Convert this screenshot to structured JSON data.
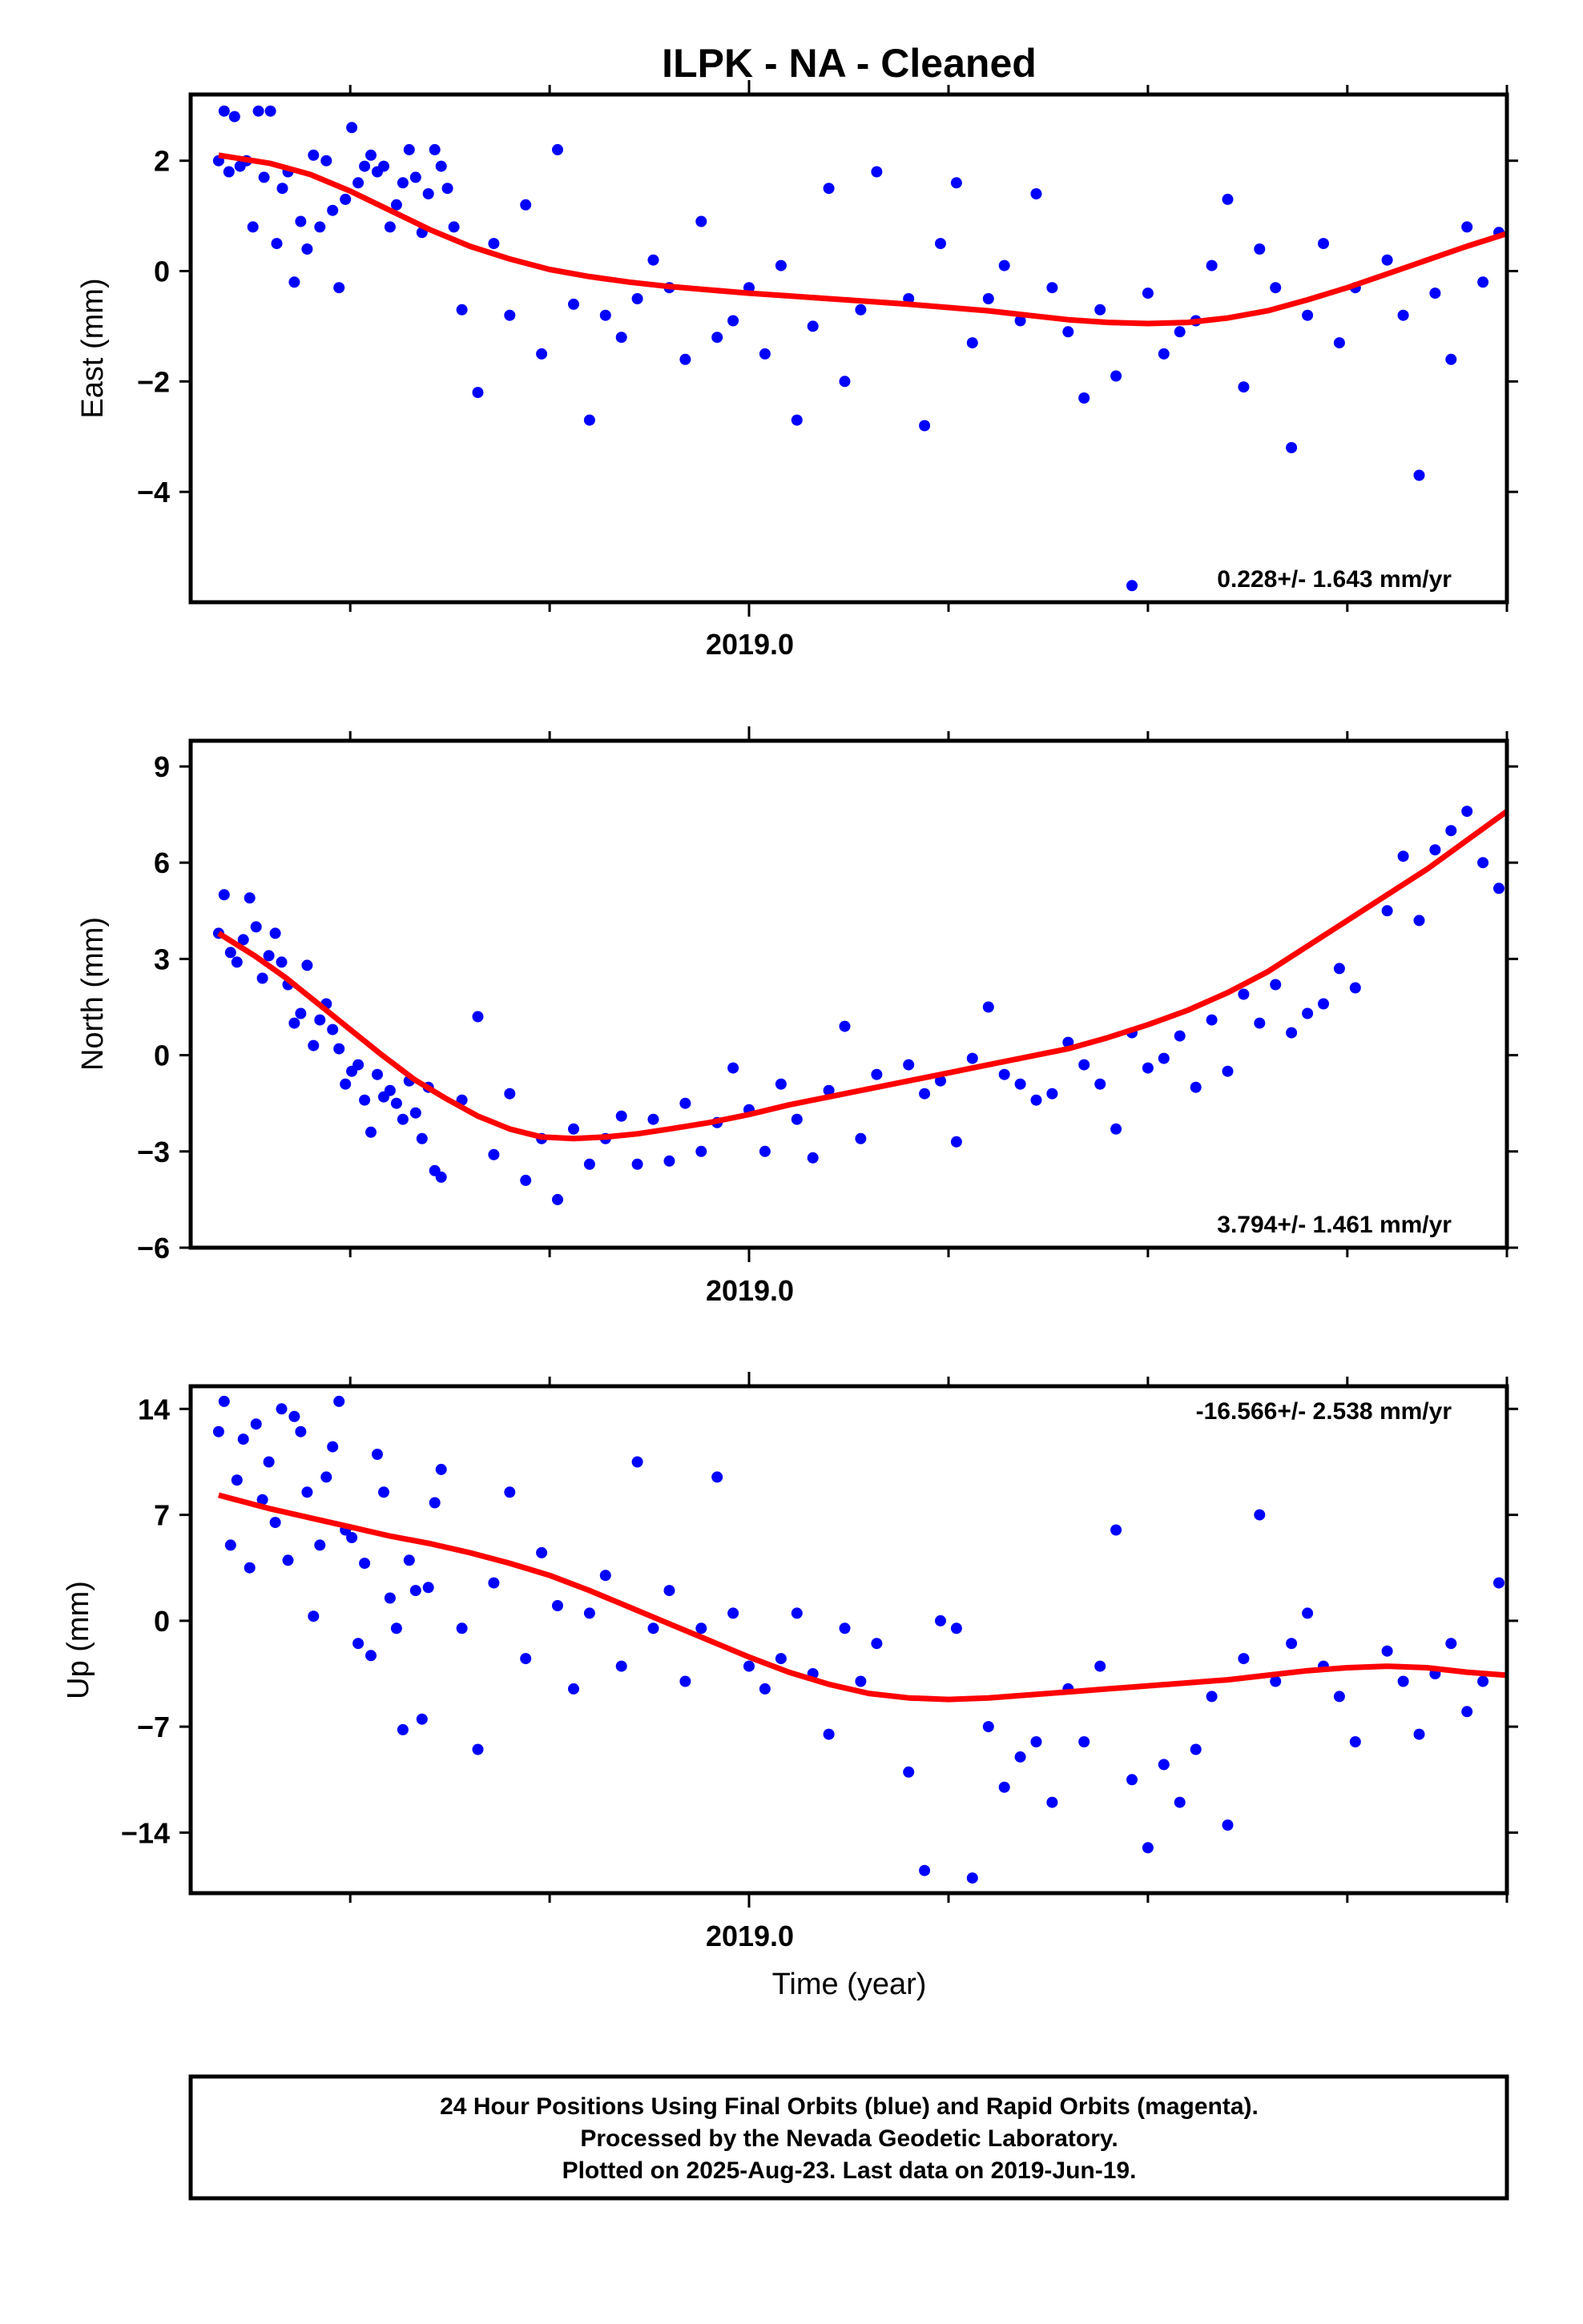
{
  "title": "ILPK  - NA - Cleaned",
  "xlabel": "Time (year)",
  "footer": {
    "line1": "24 Hour Positions Using Final Orbits (blue) and Rapid Orbits (magenta).",
    "line2": "Processed by the Nevada Geodetic Laboratory.",
    "line3": "Plotted on 2025-Aug-23. Last data on 2019-Jun-19."
  },
  "colors": {
    "points": "#0000ff",
    "fit": "#ff0000",
    "frame": "#000000"
  },
  "chart_data": [
    {
      "type": "scatter",
      "ylabel": "East (mm)",
      "rate_label": "0.228+/- 1.643 mm/yr",
      "x_tick_labels": [
        "2019.0"
      ],
      "y_ticks": [
        2,
        0,
        -2,
        -4
      ],
      "y_tick_labels": [
        "2",
        "0",
        "−2",
        "−4"
      ],
      "xlim": [
        2018.3,
        2019.95
      ],
      "ylim": [
        -6.0,
        3.2
      ],
      "x": [
        2018.335,
        2018.342,
        2018.348,
        2018.355,
        2018.362,
        2018.37,
        2018.378,
        2018.385,
        2018.392,
        2018.4,
        2018.408,
        2018.415,
        2018.422,
        2018.43,
        2018.438,
        2018.446,
        2018.454,
        2018.462,
        2018.47,
        2018.478,
        2018.486,
        2018.494,
        2018.502,
        2018.51,
        2018.518,
        2018.526,
        2018.534,
        2018.542,
        2018.55,
        2018.558,
        2018.566,
        2018.574,
        2018.582,
        2018.59,
        2018.598,
        2018.606,
        2018.614,
        2018.622,
        2018.63,
        2018.64,
        2018.66,
        2018.68,
        2018.7,
        2018.72,
        2018.74,
        2018.76,
        2018.78,
        2018.8,
        2018.82,
        2018.84,
        2018.86,
        2018.88,
        2018.9,
        2018.92,
        2018.94,
        2018.96,
        2018.98,
        2019.0,
        2019.02,
        2019.04,
        2019.06,
        2019.08,
        2019.1,
        2019.12,
        2019.14,
        2019.16,
        2019.2,
        2019.22,
        2019.24,
        2019.26,
        2019.28,
        2019.3,
        2019.32,
        2019.34,
        2019.36,
        2019.38,
        2019.4,
        2019.42,
        2019.44,
        2019.46,
        2019.48,
        2019.5,
        2019.52,
        2019.54,
        2019.56,
        2019.58,
        2019.6,
        2019.62,
        2019.64,
        2019.66,
        2019.68,
        2019.7,
        2019.72,
        2019.74,
        2019.76,
        2019.8,
        2019.82,
        2019.84,
        2019.86,
        2019.88,
        2019.9,
        2019.92,
        2019.94
      ],
      "values": [
        2.0,
        2.9,
        1.8,
        2.8,
        1.9,
        2.0,
        0.8,
        2.9,
        1.7,
        2.9,
        0.5,
        1.5,
        1.8,
        -0.2,
        0.9,
        0.4,
        2.1,
        0.8,
        2.0,
        1.1,
        -0.3,
        1.3,
        2.6,
        1.6,
        1.9,
        2.1,
        1.8,
        1.9,
        0.8,
        1.2,
        1.6,
        2.2,
        1.7,
        0.7,
        1.4,
        2.2,
        1.9,
        1.5,
        0.8,
        -0.7,
        -2.2,
        0.5,
        -0.8,
        1.2,
        -1.5,
        2.2,
        -0.6,
        -2.7,
        -0.8,
        -1.2,
        -0.5,
        0.2,
        -0.3,
        -1.6,
        0.9,
        -1.2,
        -0.9,
        -0.3,
        -1.5,
        0.1,
        -2.7,
        -1.0,
        1.5,
        -2.0,
        -0.7,
        1.8,
        -0.5,
        -2.8,
        0.5,
        1.6,
        -1.3,
        -0.5,
        0.1,
        -0.9,
        1.4,
        -0.3,
        -1.1,
        -2.3,
        -0.7,
        -1.9,
        -5.7,
        -0.4,
        -1.5,
        -1.1,
        -0.9,
        0.1,
        1.3,
        -2.1,
        0.4,
        -0.3,
        -3.2,
        -0.8,
        0.5,
        -1.3,
        -0.3,
        0.2,
        -0.8,
        -3.7,
        -0.4,
        -1.6,
        0.8,
        -0.2,
        0.7
      ],
      "fit_x": [
        2018.335,
        2018.4,
        2018.45,
        2018.5,
        2018.55,
        2018.6,
        2018.65,
        2018.7,
        2018.75,
        2018.8,
        2018.85,
        2018.9,
        2018.95,
        2019.0,
        2019.05,
        2019.1,
        2019.15,
        2019.2,
        2019.25,
        2019.3,
        2019.35,
        2019.4,
        2019.45,
        2019.5,
        2019.55,
        2019.6,
        2019.65,
        2019.7,
        2019.75,
        2019.8,
        2019.85,
        2019.9,
        2019.95
      ],
      "fit_y": [
        2.1,
        1.95,
        1.75,
        1.45,
        1.1,
        0.75,
        0.45,
        0.22,
        0.03,
        -0.1,
        -0.2,
        -0.28,
        -0.34,
        -0.4,
        -0.45,
        -0.5,
        -0.55,
        -0.6,
        -0.66,
        -0.72,
        -0.8,
        -0.88,
        -0.93,
        -0.95,
        -0.93,
        -0.85,
        -0.72,
        -0.52,
        -0.3,
        -0.05,
        0.2,
        0.45,
        0.68
      ]
    },
    {
      "type": "scatter",
      "ylabel": "North (mm)",
      "rate_label": "3.794+/- 1.461 mm/yr",
      "x_tick_labels": [
        "2019.0"
      ],
      "y_ticks": [
        9,
        6,
        3,
        0,
        -3,
        -6
      ],
      "y_tick_labels": [
        "9",
        "6",
        "3",
        "0",
        "−3",
        "−6"
      ],
      "xlim": [
        2018.3,
        2019.95
      ],
      "ylim": [
        -6.0,
        9.8
      ],
      "x": [
        2018.335,
        2018.342,
        2018.35,
        2018.358,
        2018.366,
        2018.374,
        2018.382,
        2018.39,
        2018.398,
        2018.406,
        2018.414,
        2018.422,
        2018.43,
        2018.438,
        2018.446,
        2018.454,
        2018.462,
        2018.47,
        2018.478,
        2018.486,
        2018.494,
        2018.502,
        2018.51,
        2018.518,
        2018.526,
        2018.534,
        2018.542,
        2018.55,
        2018.558,
        2018.566,
        2018.574,
        2018.582,
        2018.59,
        2018.598,
        2018.606,
        2018.614,
        2018.64,
        2018.66,
        2018.68,
        2018.7,
        2018.72,
        2018.74,
        2018.76,
        2018.78,
        2018.8,
        2018.82,
        2018.84,
        2018.86,
        2018.88,
        2018.9,
        2018.92,
        2018.94,
        2018.96,
        2018.98,
        2019.0,
        2019.02,
        2019.04,
        2019.06,
        2019.08,
        2019.1,
        2019.12,
        2019.14,
        2019.16,
        2019.2,
        2019.22,
        2019.24,
        2019.26,
        2019.28,
        2019.3,
        2019.32,
        2019.34,
        2019.36,
        2019.38,
        2019.4,
        2019.42,
        2019.44,
        2019.46,
        2019.48,
        2019.5,
        2019.52,
        2019.54,
        2019.56,
        2019.58,
        2019.6,
        2019.62,
        2019.64,
        2019.66,
        2019.68,
        2019.7,
        2019.72,
        2019.74,
        2019.76,
        2019.8,
        2019.82,
        2019.84,
        2019.86,
        2019.88,
        2019.9,
        2019.92,
        2019.94
      ],
      "values": [
        3.8,
        5.0,
        3.2,
        2.9,
        3.6,
        4.9,
        4.0,
        2.4,
        3.1,
        3.8,
        2.9,
        2.2,
        1.0,
        1.3,
        2.8,
        0.3,
        1.1,
        1.6,
        0.8,
        0.2,
        -0.9,
        -0.5,
        -0.3,
        -1.4,
        -2.4,
        -0.6,
        -1.3,
        -1.1,
        -1.5,
        -2.0,
        -0.8,
        -1.8,
        -2.6,
        -1.0,
        -3.6,
        -3.8,
        -1.4,
        1.2,
        -3.1,
        -1.2,
        -3.9,
        -2.6,
        -4.5,
        -2.3,
        -3.4,
        -2.6,
        -1.9,
        -3.4,
        -2.0,
        -3.3,
        -1.5,
        -3.0,
        -2.1,
        -0.4,
        -1.7,
        -3.0,
        -0.9,
        -2.0,
        -3.2,
        -1.1,
        0.9,
        -2.6,
        -0.6,
        -0.3,
        -1.2,
        -0.8,
        -2.7,
        -0.1,
        1.5,
        -0.6,
        -0.9,
        -1.4,
        -1.2,
        0.4,
        -0.3,
        -0.9,
        -2.3,
        0.7,
        -0.4,
        -0.1,
        0.6,
        -1.0,
        1.1,
        -0.5,
        1.9,
        1.0,
        2.2,
        0.7,
        1.3,
        1.6,
        2.7,
        2.1,
        4.5,
        6.2,
        4.2,
        6.4,
        7.0,
        7.6,
        6.0,
        5.2
      ],
      "fit_x": [
        2018.335,
        2018.38,
        2018.42,
        2018.46,
        2018.5,
        2018.54,
        2018.58,
        2018.62,
        2018.66,
        2018.7,
        2018.74,
        2018.78,
        2018.82,
        2018.86,
        2018.9,
        2018.95,
        2019.0,
        2019.05,
        2019.1,
        2019.15,
        2019.2,
        2019.25,
        2019.3,
        2019.35,
        2019.4,
        2019.45,
        2019.5,
        2019.55,
        2019.6,
        2019.65,
        2019.7,
        2019.75,
        2019.8,
        2019.85,
        2019.9,
        2019.95
      ],
      "fit_y": [
        3.8,
        3.1,
        2.4,
        1.6,
        0.8,
        0.0,
        -0.75,
        -1.35,
        -1.9,
        -2.3,
        -2.55,
        -2.6,
        -2.55,
        -2.45,
        -2.3,
        -2.1,
        -1.85,
        -1.55,
        -1.3,
        -1.05,
        -0.8,
        -0.55,
        -0.3,
        -0.05,
        0.2,
        0.55,
        0.95,
        1.4,
        1.95,
        2.6,
        3.4,
        4.2,
        5.0,
        5.8,
        6.7,
        7.6
      ]
    },
    {
      "type": "scatter",
      "ylabel": "Up (mm)",
      "rate_label": "-16.566+/- 2.538 mm/yr",
      "x_tick_labels": [
        "2019.0"
      ],
      "y_ticks": [
        14,
        7,
        0,
        -7,
        -14
      ],
      "y_tick_labels": [
        "14",
        "7",
        "0",
        "−7",
        "−14"
      ],
      "xlim": [
        2018.3,
        2019.95
      ],
      "ylim": [
        -18.0,
        15.5
      ],
      "x": [
        2018.335,
        2018.342,
        2018.35,
        2018.358,
        2018.366,
        2018.374,
        2018.382,
        2018.39,
        2018.398,
        2018.406,
        2018.414,
        2018.422,
        2018.43,
        2018.438,
        2018.446,
        2018.454,
        2018.462,
        2018.47,
        2018.478,
        2018.486,
        2018.494,
        2018.502,
        2018.51,
        2018.518,
        2018.526,
        2018.534,
        2018.542,
        2018.55,
        2018.558,
        2018.566,
        2018.574,
        2018.582,
        2018.59,
        2018.598,
        2018.606,
        2018.614,
        2018.64,
        2018.66,
        2018.68,
        2018.7,
        2018.72,
        2018.74,
        2018.76,
        2018.78,
        2018.8,
        2018.82,
        2018.84,
        2018.86,
        2018.88,
        2018.9,
        2018.92,
        2018.94,
        2018.96,
        2018.98,
        2019.0,
        2019.02,
        2019.04,
        2019.06,
        2019.08,
        2019.1,
        2019.12,
        2019.14,
        2019.16,
        2019.2,
        2019.22,
        2019.24,
        2019.26,
        2019.28,
        2019.3,
        2019.32,
        2019.34,
        2019.36,
        2019.38,
        2019.4,
        2019.42,
        2019.44,
        2019.46,
        2019.48,
        2019.5,
        2019.52,
        2019.54,
        2019.56,
        2019.58,
        2019.6,
        2019.62,
        2019.64,
        2019.66,
        2019.68,
        2019.7,
        2019.72,
        2019.74,
        2019.76,
        2019.8,
        2019.82,
        2019.84,
        2019.86,
        2019.88,
        2019.9,
        2019.92,
        2019.94
      ],
      "values": [
        12.5,
        14.5,
        5.0,
        9.3,
        12.0,
        3.5,
        13.0,
        8.0,
        10.5,
        6.5,
        14.0,
        4.0,
        13.5,
        12.5,
        8.5,
        0.3,
        5.0,
        9.5,
        11.5,
        14.5,
        6.0,
        5.5,
        -1.5,
        3.8,
        -2.3,
        11.0,
        8.5,
        1.5,
        -0.5,
        -7.2,
        4.0,
        2.0,
        -6.5,
        2.2,
        7.8,
        10.0,
        -0.5,
        -8.5,
        2.5,
        8.5,
        -2.5,
        4.5,
        1.0,
        -4.5,
        0.5,
        3.0,
        -3.0,
        10.5,
        -0.5,
        2.0,
        -4.0,
        -0.5,
        9.5,
        0.5,
        -3.0,
        -4.5,
        -2.5,
        0.5,
        -3.5,
        -7.5,
        -0.5,
        -4.0,
        -1.5,
        -10.0,
        -16.5,
        0.0,
        -0.5,
        -17.0,
        -7.0,
        -11.0,
        -9.0,
        -8.0,
        -12.0,
        -4.5,
        -8.0,
        -3.0,
        6.0,
        -10.5,
        -15.0,
        -9.5,
        -12.0,
        -8.5,
        -5.0,
        -13.5,
        -2.5,
        7.0,
        -4.0,
        -1.5,
        0.5,
        -3.0,
        -5.0,
        -8.0,
        -2.0,
        -4.0,
        -7.5,
        -3.5,
        -1.5,
        -6.0,
        -4.0,
        2.5
      ],
      "fit_x": [
        2018.335,
        2018.4,
        2018.45,
        2018.5,
        2018.55,
        2018.6,
        2018.65,
        2018.7,
        2018.75,
        2018.8,
        2018.85,
        2018.9,
        2018.95,
        2019.0,
        2019.05,
        2019.1,
        2019.15,
        2019.2,
        2019.25,
        2019.3,
        2019.35,
        2019.4,
        2019.45,
        2019.5,
        2019.55,
        2019.6,
        2019.65,
        2019.7,
        2019.75,
        2019.8,
        2019.85,
        2019.9,
        2019.95
      ],
      "fit_y": [
        8.3,
        7.4,
        6.8,
        6.2,
        5.6,
        5.1,
        4.5,
        3.8,
        3.0,
        2.0,
        0.9,
        -0.2,
        -1.3,
        -2.4,
        -3.4,
        -4.2,
        -4.8,
        -5.1,
        -5.2,
        -5.1,
        -4.9,
        -4.7,
        -4.5,
        -4.3,
        -4.1,
        -3.9,
        -3.6,
        -3.3,
        -3.1,
        -3.0,
        -3.1,
        -3.4,
        -3.6
      ]
    }
  ]
}
